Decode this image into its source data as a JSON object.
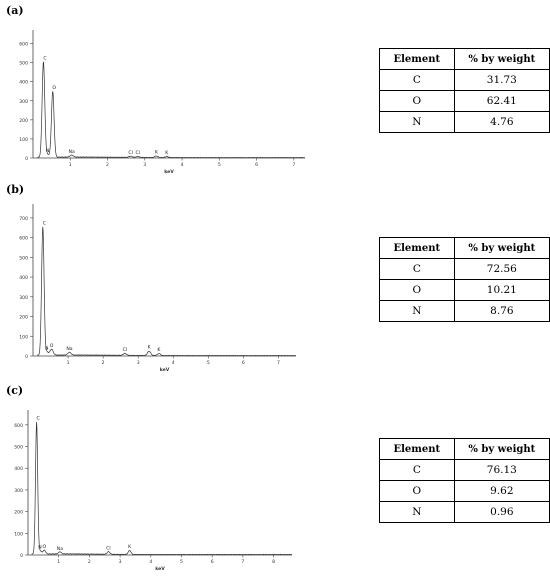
{
  "panels": [
    {
      "label": "(a)",
      "chart_data": {
        "type": "line",
        "xlabel": "keV",
        "ylabel": "",
        "xlim": [
          0,
          7.3
        ],
        "ylim": [
          0,
          650
        ],
        "xticks": [
          1,
          2,
          3,
          4,
          5,
          6,
          7
        ],
        "yticks": [
          0,
          100,
          200,
          300,
          400,
          500,
          600
        ],
        "peaks": [
          {
            "energy": 0.28,
            "height": 500,
            "label": "C"
          },
          {
            "energy": 0.39,
            "height": 15,
            "label": "N"
          },
          {
            "energy": 0.53,
            "height": 345,
            "label": "O"
          },
          {
            "energy": 1.04,
            "height": 10,
            "label": "Na"
          },
          {
            "energy": 2.62,
            "height": 6,
            "label": "Cl"
          },
          {
            "energy": 2.81,
            "height": 5,
            "label": "Cl"
          },
          {
            "energy": 3.31,
            "height": 8,
            "label": "K"
          },
          {
            "energy": 3.59,
            "height": 5,
            "label": "K"
          }
        ]
      },
      "table": {
        "headers": [
          "Element",
          "% by weight"
        ],
        "rows": [
          [
            "C",
            "31.73"
          ],
          [
            "O",
            "62.41"
          ],
          [
            "N",
            "4.76"
          ]
        ]
      }
    },
    {
      "label": "(b)",
      "chart_data": {
        "type": "line",
        "xlabel": "keV",
        "ylabel": "",
        "xlim": [
          0,
          7.5
        ],
        "ylim": [
          0,
          750
        ],
        "xticks": [
          1,
          2,
          3,
          4,
          5,
          6,
          7
        ],
        "yticks": [
          0,
          100,
          200,
          300,
          400,
          500,
          600,
          700
        ],
        "peaks": [
          {
            "energy": 0.28,
            "height": 650,
            "label": "C"
          },
          {
            "energy": 0.39,
            "height": 18,
            "label": "N"
          },
          {
            "energy": 0.53,
            "height": 30,
            "label": "O"
          },
          {
            "energy": 1.04,
            "height": 14,
            "label": "Na"
          },
          {
            "energy": 2.62,
            "height": 10,
            "label": "Cl"
          },
          {
            "energy": 3.31,
            "height": 22,
            "label": "K"
          },
          {
            "energy": 3.59,
            "height": 10,
            "label": "K"
          }
        ]
      },
      "table": {
        "headers": [
          "Element",
          "% by weight"
        ],
        "rows": [
          [
            "C",
            "72.56"
          ],
          [
            "O",
            "10.21"
          ],
          [
            "N",
            "8.76"
          ]
        ]
      }
    },
    {
      "label": "(c)",
      "chart_data": {
        "type": "line",
        "xlabel": "keV",
        "ylabel": "",
        "xlim": [
          0,
          8.6
        ],
        "ylim": [
          0,
          650
        ],
        "xticks": [
          1,
          2,
          3,
          4,
          5,
          6,
          7,
          8
        ],
        "yticks": [
          0,
          100,
          200,
          300,
          400,
          500,
          600
        ],
        "peaks": [
          {
            "energy": 0.28,
            "height": 610,
            "label": "C"
          },
          {
            "energy": 0.39,
            "height": 15,
            "label": "N"
          },
          {
            "energy": 0.53,
            "height": 18,
            "label": "O"
          },
          {
            "energy": 1.04,
            "height": 10,
            "label": "Na"
          },
          {
            "energy": 2.62,
            "height": 12,
            "label": "Cl"
          },
          {
            "energy": 3.31,
            "height": 18,
            "label": "K"
          }
        ]
      },
      "table": {
        "headers": [
          "Element",
          "% by weight"
        ],
        "rows": [
          [
            "C",
            "76.13"
          ],
          [
            "O",
            "9.62"
          ],
          [
            "N",
            "0.96"
          ]
        ]
      }
    }
  ]
}
